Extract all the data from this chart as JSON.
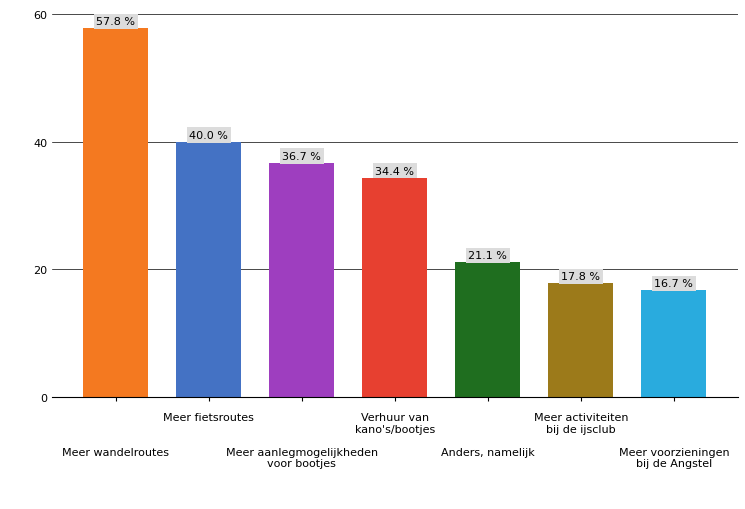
{
  "categories": [
    "Meer wandelroutes",
    "Meer fietsroutes",
    "Meer aanlegmogelijkheden\nvoor bootjes",
    "Verhuur van\nkano's/bootjes",
    "Anders, namelijk",
    "Meer activiteiten\nbij de ijsclub",
    "Meer voorzieningen\nbij de Angstel"
  ],
  "values": [
    57.8,
    40.0,
    36.7,
    34.4,
    21.1,
    17.8,
    16.7
  ],
  "labels": [
    "57.8 %",
    "40.0 %",
    "36.7 %",
    "34.4 %",
    "21.1 %",
    "17.8 %",
    "16.7 %"
  ],
  "colors": [
    "#F47920",
    "#4472C4",
    "#9E3EBF",
    "#E74030",
    "#1F6E1F",
    "#9C7A1A",
    "#29ABDE"
  ],
  "ylim": [
    0,
    60
  ],
  "yticks": [
    0,
    20,
    40,
    60
  ],
  "background_color": "#FFFFFF",
  "grid_color": "#000000",
  "bar_width": 0.7,
  "label_fontsize": 8,
  "tick_fontsize": 8,
  "label_bg_color": "#DCDCDC",
  "label_text_color": "#000000",
  "stagger_row1": [
    0,
    2,
    4,
    6
  ],
  "stagger_row2": [
    1,
    3,
    5
  ]
}
